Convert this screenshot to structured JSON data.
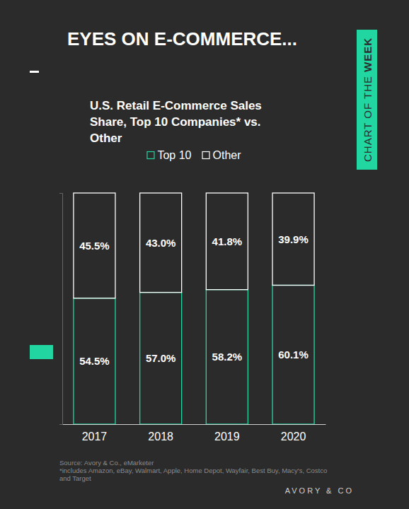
{
  "header": {
    "title": "EYES ON E-COMMERCE...",
    "badge": {
      "text": "CHART OF THE",
      "emphasis": "WEEK"
    }
  },
  "chart_data": {
    "type": "bar",
    "stacked": true,
    "title": "U.S. Retail E-Commerce Sales Share, Top 10 Companies* vs. Other",
    "categories": [
      "2017",
      "2018",
      "2019",
      "2020"
    ],
    "series": [
      {
        "name": "Top 10",
        "color": "#22d6a2",
        "values": [
          54.5,
          57.0,
          58.2,
          60.1
        ],
        "value_labels": [
          "54.5%",
          "57.0%",
          "58.2%",
          "60.1%"
        ]
      },
      {
        "name": "Other",
        "color": "#ffffff",
        "values": [
          45.5,
          43.0,
          41.8,
          39.9
        ],
        "value_labels": [
          "45.5%",
          "43.0%",
          "41.8%",
          "39.9%"
        ]
      }
    ],
    "ylim": [
      0,
      100
    ],
    "yticks": [],
    "data_labels": true,
    "legend": "top",
    "tick_labels": "x"
  },
  "footer": {
    "source": "Source: Avory & Co., eMarketer",
    "note": [
      "*includes Amazon, eBay, Walmart, Apple, Home Depot, Wayfair, Best Buy, Macy's, Costco",
      "and Target"
    ],
    "brand": "AVORY & CO"
  }
}
